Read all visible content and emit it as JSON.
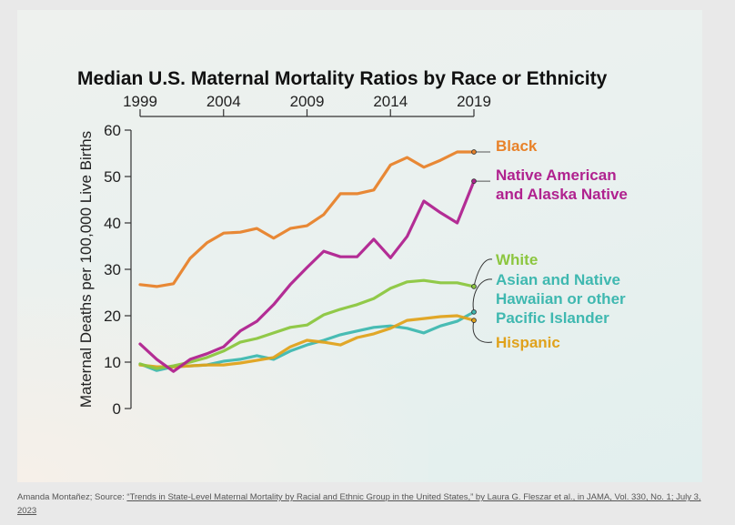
{
  "chart_data": {
    "type": "line",
    "title": "Median U.S. Maternal Mortality Ratios by Race or Ethnicity",
    "xlabel": "",
    "ylabel": "Maternal Deaths per 100,000 Live Births",
    "x": [
      1999,
      2000,
      2001,
      2002,
      2003,
      2004,
      2005,
      2006,
      2007,
      2008,
      2009,
      2010,
      2011,
      2012,
      2013,
      2014,
      2015,
      2016,
      2017,
      2018,
      2019
    ],
    "xticks": [
      "1999",
      "2004",
      "2009",
      "2014",
      "2019"
    ],
    "xtick_values": [
      1999,
      2004,
      2009,
      2014,
      2019
    ],
    "yticks": [
      "0",
      "10",
      "20",
      "30",
      "40",
      "50",
      "60"
    ],
    "ytick_values": [
      0,
      10,
      20,
      30,
      40,
      50,
      60
    ],
    "ylim": [
      0,
      60
    ],
    "xlim": [
      1999,
      2019
    ],
    "grid": false,
    "legend": "direct-labels-right",
    "series": [
      {
        "name": "Black",
        "label_lines": [
          "Black"
        ],
        "color": "#e8822a",
        "values": [
          26.7,
          26.3,
          26.9,
          32.4,
          35.7,
          37.8,
          38.0,
          38.8,
          36.7,
          38.8,
          39.4,
          41.8,
          46.3,
          46.3,
          47.1,
          52.5,
          54.1,
          52.0,
          53.5,
          55.3,
          55.3
        ]
      },
      {
        "name": "Native American and Alaska Native",
        "label_lines": [
          "Native American",
          "and Alaska Native"
        ],
        "color": "#b0228f",
        "values": [
          13.9,
          10.6,
          8.0,
          10.6,
          11.8,
          13.3,
          16.7,
          18.8,
          22.4,
          26.7,
          30.4,
          33.9,
          32.7,
          32.7,
          36.5,
          32.5,
          37.1,
          44.7,
          42.2,
          40.0,
          49.0
        ]
      },
      {
        "name": "White",
        "label_lines": [
          "White"
        ],
        "color": "#8cc63f",
        "values": [
          9.6,
          8.6,
          9.2,
          10.0,
          11.0,
          12.4,
          14.3,
          15.1,
          16.3,
          17.5,
          18.0,
          20.2,
          21.4,
          22.4,
          23.7,
          25.9,
          27.3,
          27.6,
          27.1,
          27.1,
          26.3
        ]
      },
      {
        "name": "Asian and Native Hawaiian or other Pacific Islander",
        "label_lines": [
          "Asian and Native",
          "Hawaiian or other",
          "Pacific Islander"
        ],
        "color": "#3fb8b0",
        "values": [
          9.6,
          8.2,
          9.0,
          9.2,
          9.4,
          10.2,
          10.6,
          11.4,
          10.6,
          12.4,
          13.7,
          14.7,
          15.9,
          16.7,
          17.5,
          17.8,
          17.3,
          16.3,
          17.8,
          18.8,
          20.8
        ]
      },
      {
        "name": "Hispanic",
        "label_lines": [
          "Hispanic"
        ],
        "color": "#e0a21c",
        "values": [
          9.4,
          9.0,
          9.0,
          9.2,
          9.4,
          9.4,
          9.8,
          10.4,
          11.0,
          13.3,
          14.7,
          14.3,
          13.7,
          15.3,
          16.1,
          17.3,
          19.0,
          19.4,
          19.8,
          20.0,
          19.0
        ]
      }
    ]
  },
  "caption": {
    "prefix": "Amanda Montañez; Source: ",
    "link_text": "“Trends in State-Level Maternal Mortality by Racial and Ethnic Group in the United States,” by Laura G. Fleszar et al., in JAMA, Vol. 330, No. 1; July 3, 2023"
  }
}
